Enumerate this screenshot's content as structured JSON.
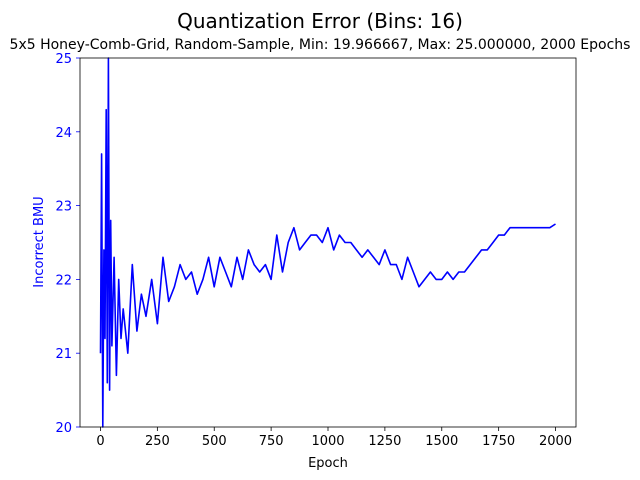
{
  "chart_data": {
    "type": "line",
    "title": "Quantization Error (Bins: 16)",
    "subtitle": "5x5 Honey-Comb-Grid, Random-Sample, Min: 19.966667, Max: 25.000000, 2000 Epochs",
    "xlabel": "Epoch",
    "ylabel": "Incorrect BMU",
    "xlim": [
      -90,
      2090
    ],
    "ylim": [
      20,
      25
    ],
    "xticks": [
      0,
      250,
      500,
      750,
      1000,
      1250,
      1500,
      1750,
      2000
    ],
    "yticks": [
      20,
      21,
      22,
      23,
      24,
      25
    ],
    "grid": false,
    "line_color": "#0000ff",
    "ylabel_color": "#0000ff",
    "series": [
      {
        "x": [
          0,
          5,
          10,
          15,
          20,
          25,
          30,
          35,
          40,
          45,
          50,
          60,
          70,
          80,
          90,
          100,
          120,
          140,
          160,
          180,
          200,
          225,
          250,
          275,
          300,
          325,
          350,
          375,
          400,
          425,
          450,
          475,
          500,
          525,
          550,
          575,
          600,
          625,
          650,
          675,
          700,
          725,
          750,
          775,
          800,
          825,
          850,
          875,
          900,
          925,
          950,
          975,
          1000,
          1025,
          1050,
          1075,
          1100,
          1125,
          1150,
          1175,
          1200,
          1225,
          1250,
          1275,
          1300,
          1325,
          1350,
          1375,
          1400,
          1425,
          1450,
          1475,
          1500,
          1525,
          1550,
          1575,
          1600,
          1625,
          1650,
          1675,
          1700,
          1725,
          1750,
          1775,
          1800,
          1825,
          1850,
          1875,
          1900,
          1925,
          1950,
          1975,
          2000
        ],
        "y": [
          21.0,
          23.7,
          20.0,
          22.4,
          21.2,
          24.3,
          20.6,
          25.0,
          20.5,
          22.8,
          21.1,
          22.3,
          20.7,
          22.0,
          21.2,
          21.6,
          21.0,
          22.2,
          21.3,
          21.8,
          21.5,
          22.0,
          21.4,
          22.3,
          21.7,
          21.9,
          22.2,
          22.0,
          22.1,
          21.8,
          22.0,
          22.3,
          21.9,
          22.3,
          22.1,
          21.9,
          22.3,
          22.0,
          22.4,
          22.2,
          22.1,
          22.2,
          22.0,
          22.6,
          22.1,
          22.5,
          22.7,
          22.4,
          22.5,
          22.6,
          22.6,
          22.5,
          22.7,
          22.4,
          22.6,
          22.5,
          22.5,
          22.4,
          22.3,
          22.4,
          22.3,
          22.2,
          22.4,
          22.2,
          22.2,
          22.0,
          22.3,
          22.1,
          21.9,
          22.0,
          22.1,
          22.0,
          22.0,
          22.1,
          22.0,
          22.1,
          22.1,
          22.2,
          22.3,
          22.4,
          22.4,
          22.5,
          22.6,
          22.6,
          22.7,
          22.7,
          22.7,
          22.7,
          22.7,
          22.7,
          22.7,
          22.7,
          22.75
        ]
      }
    ]
  }
}
